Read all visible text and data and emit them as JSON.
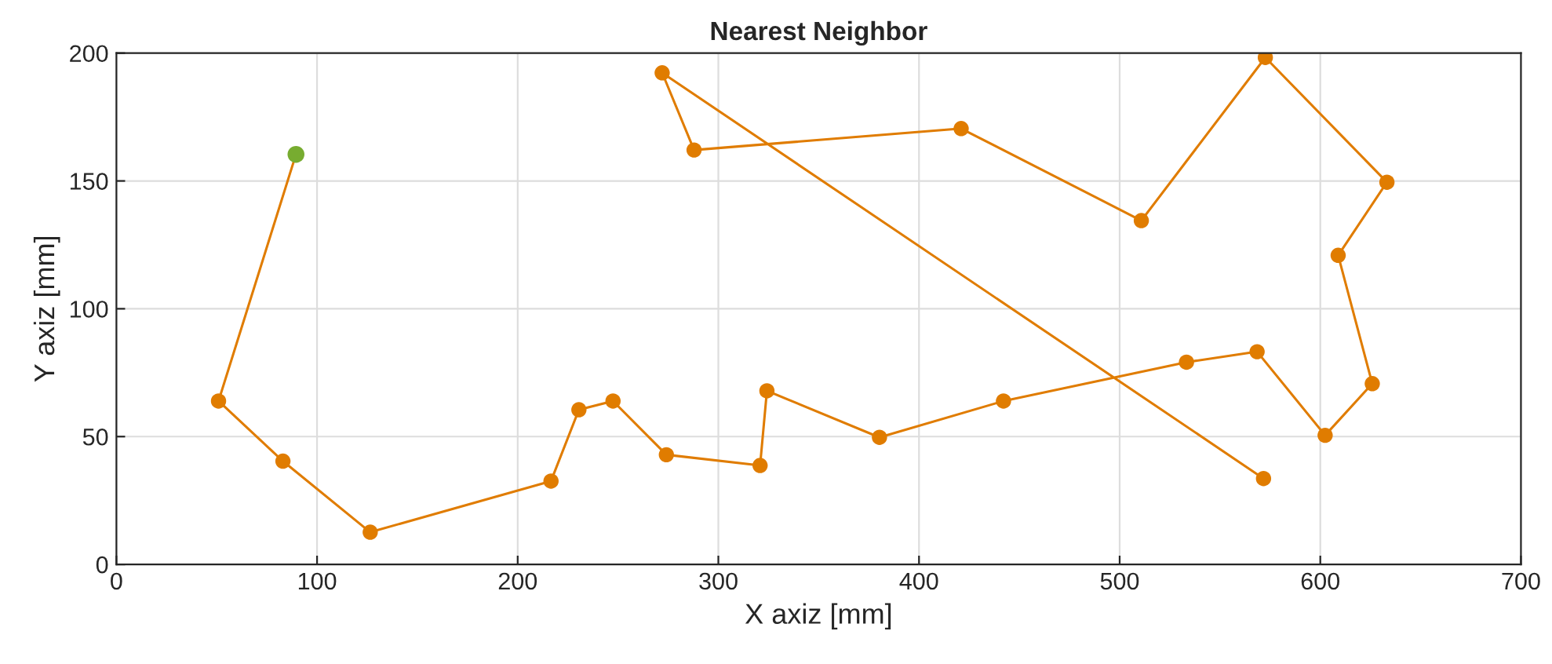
{
  "chart_data": {
    "type": "line",
    "title": "Nearest Neighbor",
    "xlabel": "X axiz [mm]",
    "ylabel": "Y axiz [mm]",
    "xlim": [
      0,
      700
    ],
    "xticks": [
      0,
      100,
      200,
      300,
      400,
      500,
      600,
      700
    ],
    "ylim": [
      0,
      200
    ],
    "yticks": [
      0,
      50,
      100,
      150,
      200
    ],
    "grid": true,
    "marker": "circle",
    "line_style": "solid",
    "series": [
      {
        "color": "#e07c00",
        "x": [
          89.5,
          50.9,
          83.0,
          126.5,
          216.6,
          230.5,
          247.5,
          274.1,
          320.8,
          324.2,
          380.3,
          442.1,
          533.3,
          568.5,
          602.4,
          625.9,
          608.9,
          633.2,
          572.6,
          510.8,
          421.0,
          287.9,
          272.0,
          571.7
        ],
        "values": [
          160.4,
          63.9,
          40.4,
          12.6,
          32.6,
          60.5,
          63.9,
          42.9,
          38.7,
          67.9,
          49.7,
          63.9,
          79.1,
          83.2,
          50.5,
          70.7,
          120.9,
          149.5,
          198.3,
          134.5,
          170.5,
          162.1,
          192.3,
          33.6
        ]
      },
      {
        "type": "scatter",
        "color": "#77ac30",
        "x": [
          89.5
        ],
        "values": [
          160.4
        ]
      }
    ]
  }
}
